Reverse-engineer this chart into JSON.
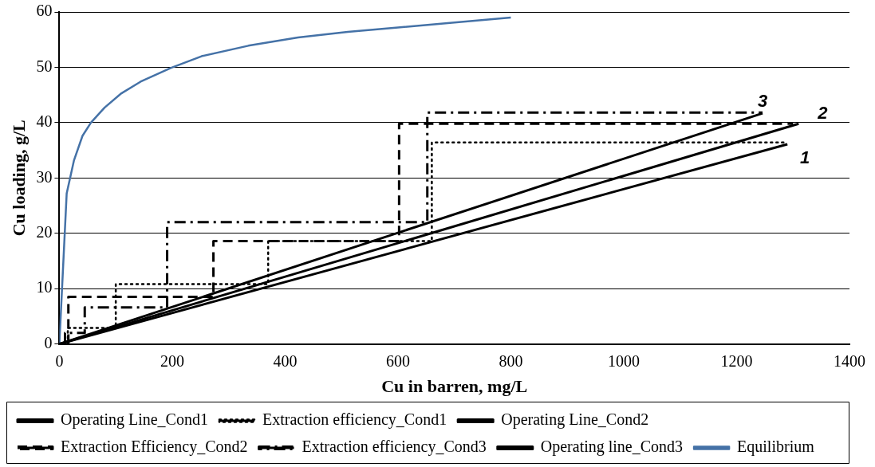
{
  "chart_data": {
    "type": "line",
    "xlabel": "Cu in barren, mg/L",
    "ylabel": "Cu loading, g/L",
    "xlim": [
      0,
      1400
    ],
    "xticks": [
      0,
      200,
      400,
      600,
      800,
      1000,
      1200,
      1400
    ],
    "ylim": [
      0,
      60
    ],
    "yticks": [
      0,
      10,
      20,
      30,
      40,
      50,
      60
    ],
    "grid": "y",
    "legend": "bottom",
    "marker": "none",
    "series": [
      {
        "name": "Operating Line_Cond1",
        "color": "#000000",
        "line_style": "solid",
        "x": [
          0,
          1290
        ],
        "values": [
          0,
          36.1
        ]
      },
      {
        "name": "Extraction efficiency_Cond1",
        "color": "#000000",
        "line_style": "dotted",
        "x": [
          15,
          15,
          100,
          100,
          370,
          370,
          660,
          660,
          1290
        ],
        "values": [
          0,
          2.9,
          2.9,
          10.8,
          10.8,
          18.6,
          18.6,
          36.4,
          36.4
        ]
      },
      {
        "name": "Operating Line_Cond2",
        "color": "#000000",
        "line_style": "solid",
        "x": [
          0,
          1310
        ],
        "values": [
          0,
          39.8
        ]
      },
      {
        "name": "Extraction Efficiency_Cond2",
        "color": "#000000",
        "line_style": "dashed",
        "x": [
          16,
          16,
          273,
          273,
          602,
          602,
          1300
        ],
        "values": [
          0,
          8.5,
          8.5,
          18.6,
          18.6,
          39.8,
          39.8
        ]
      },
      {
        "name": "Extraction efficiency_Cond3",
        "color": "#000000",
        "line_style": "dashdot",
        "x": [
          10,
          10,
          45,
          45,
          191,
          191,
          652,
          652,
          1246
        ],
        "values": [
          0,
          2,
          2,
          6.6,
          6.6,
          22,
          22,
          41.8,
          41.8
        ]
      },
      {
        "name": "Operating line_Cond3",
        "color": "#000000",
        "line_style": "solid",
        "x": [
          0,
          1246
        ],
        "values": [
          0,
          41.7
        ]
      },
      {
        "name": "Equilibrium",
        "color": "#4572a7",
        "line_style": "solid",
        "x": [
          0,
          13,
          26,
          41,
          56,
          80,
          110,
          144,
          198,
          252,
          335,
          423,
          511,
          600,
          700,
          800
        ],
        "values": [
          0,
          27.2,
          33.2,
          37.6,
          40,
          42.7,
          45.3,
          47.4,
          49.9,
          52,
          53.9,
          55.4,
          56.4,
          57.2,
          58.1,
          59
        ]
      }
    ],
    "annotations": [
      "3",
      "2",
      "1"
    ]
  }
}
